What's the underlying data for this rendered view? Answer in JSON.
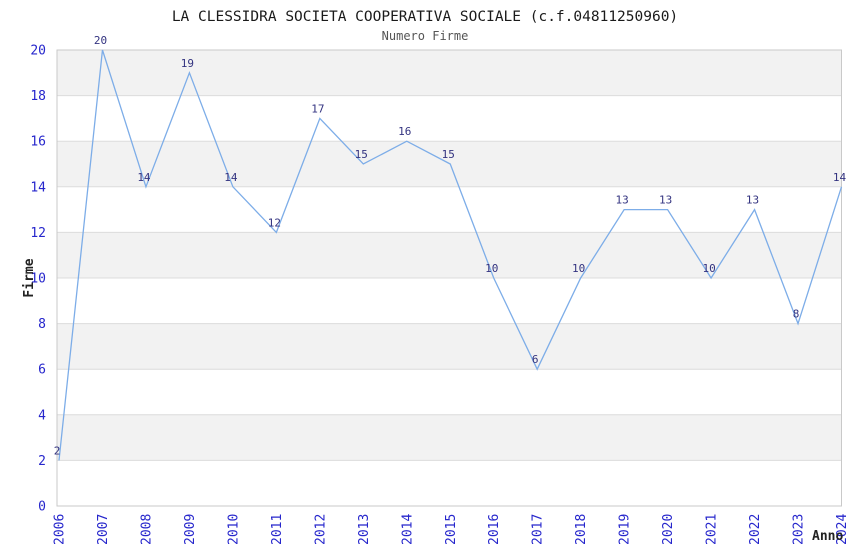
{
  "chart_data": {
    "type": "line",
    "title": "LA CLESSIDRA SOCIETA COOPERATIVA SOCIALE (c.f.04811250960)",
    "subtitle": "Numero Firme",
    "xlabel": "Anno",
    "ylabel": "Firme",
    "categories": [
      "2006",
      "2007",
      "2008",
      "2009",
      "2010",
      "2011",
      "2012",
      "2013",
      "2014",
      "2015",
      "2016",
      "2017",
      "2018",
      "2019",
      "2020",
      "2021",
      "2022",
      "2023",
      "2024"
    ],
    "values": [
      2,
      20,
      14,
      19,
      14,
      12,
      17,
      15,
      16,
      15,
      10,
      6,
      10,
      13,
      13,
      10,
      13,
      8,
      14
    ],
    "ylim": [
      0,
      20
    ],
    "ytick_step": 2,
    "grid": true,
    "legend": "none",
    "shaded_bands": [
      [
        2,
        4
      ],
      [
        6,
        8
      ],
      [
        10,
        12
      ],
      [
        14,
        16
      ],
      [
        18,
        20
      ]
    ],
    "colors": {
      "line": "#7dade8",
      "tick_label": "#2626cc",
      "data_label": "#333380",
      "band": "#f2f2f2",
      "gridline": "#dcdcdc",
      "plot_border": "#c9c9c9",
      "title": "#1a1a1a",
      "subtitle": "#555555",
      "axis_title": "#222222",
      "background": "#ffffff"
    }
  }
}
